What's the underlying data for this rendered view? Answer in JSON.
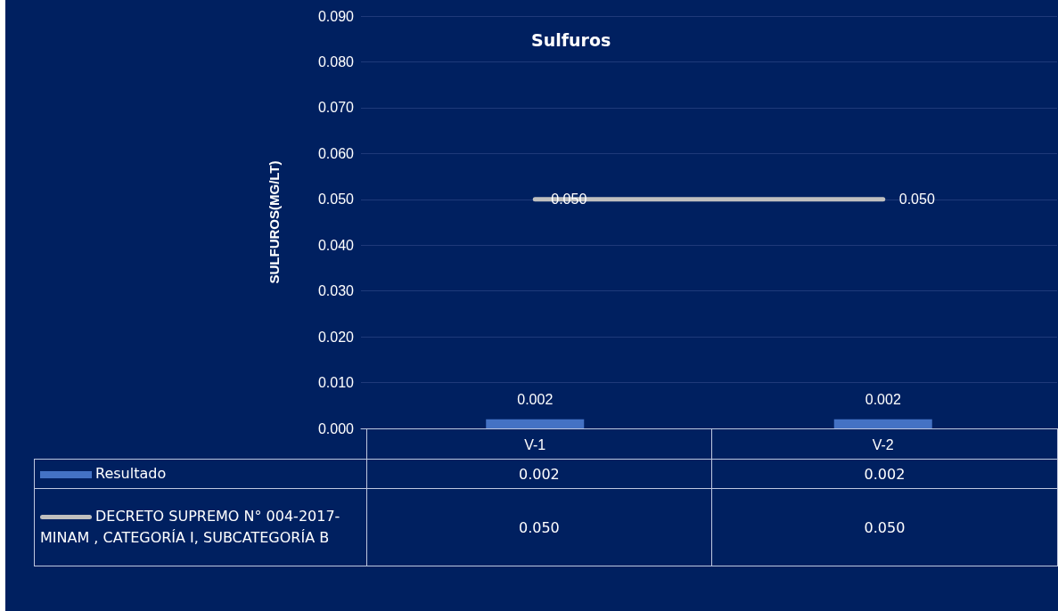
{
  "chart_data": {
    "type": "bar",
    "title": "Sulfuros",
    "ylabel": "SULFUROS(MG/LT)",
    "categories": [
      "V-1",
      "V-2"
    ],
    "series": [
      {
        "name": "Resultado",
        "color": "#4472c4",
        "values": [
          0.002,
          0.002
        ],
        "value_labels": [
          "0.002",
          "0.002"
        ]
      },
      {
        "name": "DECRETO SUPREMO N° 004-2017-MINAM , CATEGORÍA I, SUBCATEGORÍA B",
        "type": "line",
        "color": "#bfbfbf",
        "values": [
          0.05,
          0.05
        ],
        "value_labels": [
          "0.050",
          "0.050"
        ]
      }
    ],
    "ylim": [
      0,
      0.09
    ],
    "yticks": [
      {
        "value": 0,
        "label": "0.000"
      },
      {
        "value": 0.01,
        "label": "0.010"
      },
      {
        "value": 0.02,
        "label": "0.020"
      },
      {
        "value": 0.03,
        "label": "0.030"
      },
      {
        "value": 0.04,
        "label": "0.040"
      },
      {
        "value": 0.05,
        "label": "0.050"
      },
      {
        "value": 0.06,
        "label": "0.060"
      },
      {
        "value": 0.07,
        "label": "0.070"
      },
      {
        "value": 0.08,
        "label": "0.080"
      },
      {
        "value": 0.09,
        "label": "0.090"
      }
    ],
    "grid": "y",
    "legend": "bottom left",
    "marker": "none",
    "line_style": "solid"
  }
}
